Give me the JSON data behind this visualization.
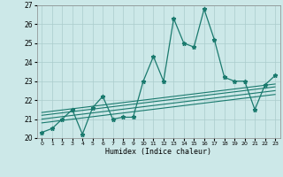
{
  "x_data": [
    0,
    1,
    2,
    3,
    4,
    5,
    6,
    7,
    8,
    9,
    10,
    11,
    12,
    13,
    14,
    15,
    16,
    17,
    18,
    19,
    20,
    21,
    22,
    23
  ],
  "y_main": [
    20.3,
    20.5,
    21.0,
    21.5,
    20.2,
    21.6,
    22.2,
    21.0,
    21.1,
    21.1,
    23.0,
    24.3,
    23.0,
    26.3,
    25.0,
    24.8,
    26.8,
    25.2,
    23.2,
    23.0,
    23.0,
    21.5,
    22.8,
    23.3
  ],
  "trend_lines": [
    {
      "x0": 0,
      "y0": 20.8,
      "x1": 23,
      "y1": 22.3
    },
    {
      "x0": 0,
      "y0": 21.0,
      "x1": 23,
      "y1": 22.5
    },
    {
      "x0": 0,
      "y0": 21.2,
      "x1": 23,
      "y1": 22.7
    },
    {
      "x0": 0,
      "y0": 21.35,
      "x1": 23,
      "y1": 22.85
    }
  ],
  "xlim": [
    -0.5,
    23.5
  ],
  "ylim": [
    20,
    27
  ],
  "yticks": [
    20,
    21,
    22,
    23,
    24,
    25,
    26,
    27
  ],
  "xticks": [
    0,
    1,
    2,
    3,
    4,
    5,
    6,
    7,
    8,
    9,
    10,
    11,
    12,
    13,
    14,
    15,
    16,
    17,
    18,
    19,
    20,
    21,
    22,
    23
  ],
  "xlabel": "Humidex (Indice chaleur)",
  "line_color": "#1a7a6e",
  "bg_color": "#cce8e8",
  "grid_color": "#aacccc",
  "title": ""
}
